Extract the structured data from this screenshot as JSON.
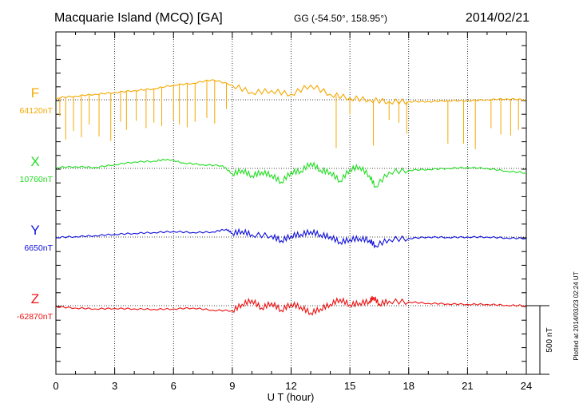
{
  "header": {
    "station": "Macquarie Island (MCQ)  [GA]",
    "coords": "GG (-54.50°, 158.95°)",
    "date": "2014/02/21"
  },
  "footer": {
    "plotted": "Plotted at 2014/03/23 02:24 UT"
  },
  "chart_data": {
    "type": "line",
    "xlabel": "U T (hour)",
    "xlim": [
      0,
      24
    ],
    "x_ticks": [
      0,
      3,
      6,
      9,
      12,
      15,
      18,
      21,
      24
    ],
    "grid": "dotted vertical lines every 3 hours; dotted baseline per trace",
    "scale_bar": {
      "label": "500 nT",
      "value_nT": 500
    },
    "series": [
      {
        "name": "F",
        "baseline_label": "64120nT",
        "baseline_nT": 64120,
        "color": "#f5a800",
        "points": [
          [
            0,
            64133
          ],
          [
            1,
            64147
          ],
          [
            2,
            64160
          ],
          [
            3,
            64173
          ],
          [
            4,
            64187
          ],
          [
            5,
            64200
          ],
          [
            6,
            64227
          ],
          [
            7,
            64240
          ],
          [
            8,
            64267
          ],
          [
            9,
            64227
          ],
          [
            10,
            64173
          ],
          [
            11,
            64187
          ],
          [
            12,
            64160
          ],
          [
            13,
            64227
          ],
          [
            14,
            64160
          ],
          [
            15,
            64133
          ],
          [
            16,
            64120
          ],
          [
            17,
            64107
          ],
          [
            18,
            64107
          ],
          [
            19,
            64107
          ],
          [
            20,
            64113
          ],
          [
            21,
            64113
          ],
          [
            22,
            64120
          ],
          [
            23,
            64127
          ],
          [
            24,
            64120
          ]
        ],
        "spikes": [
          [
            0.2,
            64000
          ],
          [
            0.5,
            63830
          ],
          [
            0.9,
            63893
          ],
          [
            1.3,
            63847
          ],
          [
            1.7,
            63940
          ],
          [
            2.2,
            63853
          ],
          [
            2.8,
            63820
          ],
          [
            3.3,
            63960
          ],
          [
            3.6,
            63900
          ],
          [
            4.1,
            63967
          ],
          [
            4.6,
            63913
          ],
          [
            5.0,
            63953
          ],
          [
            5.4,
            63927
          ],
          [
            6.0,
            63973
          ],
          [
            6.3,
            63940
          ],
          [
            6.7,
            63920
          ],
          [
            7.1,
            63960
          ],
          [
            7.7,
            63987
          ],
          [
            8.1,
            63947
          ],
          [
            8.7,
            64053
          ],
          [
            14.3,
            63767
          ],
          [
            15.0,
            64013
          ],
          [
            16.2,
            63787
          ],
          [
            17.0,
            63973
          ],
          [
            17.5,
            63953
          ],
          [
            17.9,
            63873
          ],
          [
            20.0,
            63800
          ],
          [
            20.8,
            63800
          ],
          [
            21.4,
            63760
          ],
          [
            22.2,
            63913
          ],
          [
            22.7,
            63867
          ],
          [
            23.2,
            63860
          ],
          [
            23.6,
            63900
          ]
        ]
      },
      {
        "name": "X",
        "baseline_label": "10760nT",
        "baseline_nT": 10760,
        "color": "#22dd22",
        "points": [
          [
            0,
            10767
          ],
          [
            1,
            10773
          ],
          [
            2,
            10767
          ],
          [
            3,
            10787
          ],
          [
            4,
            10807
          ],
          [
            5,
            10813
          ],
          [
            5.7,
            10827
          ],
          [
            6.5,
            10800
          ],
          [
            7.5,
            10787
          ],
          [
            8.5,
            10780
          ],
          [
            9,
            10720
          ],
          [
            9.5,
            10747
          ],
          [
            10,
            10707
          ],
          [
            10.5,
            10733
          ],
          [
            11,
            10713
          ],
          [
            11.5,
            10660
          ],
          [
            12,
            10733
          ],
          [
            12.5,
            10740
          ],
          [
            13,
            10800
          ],
          [
            13.5,
            10747
          ],
          [
            14,
            10733
          ],
          [
            14.5,
            10667
          ],
          [
            15,
            10753
          ],
          [
            15.5,
            10773
          ],
          [
            16,
            10707
          ],
          [
            16.3,
            10627
          ],
          [
            17,
            10733
          ],
          [
            18,
            10747
          ],
          [
            19,
            10753
          ],
          [
            20,
            10760
          ],
          [
            21,
            10767
          ],
          [
            22,
            10760
          ],
          [
            23,
            10740
          ],
          [
            24,
            10727
          ]
        ]
      },
      {
        "name": "Y",
        "baseline_label": "6650nT",
        "baseline_nT": 6650,
        "color": "#1010dd",
        "points": [
          [
            0,
            6647
          ],
          [
            1,
            6653
          ],
          [
            2,
            6660
          ],
          [
            3,
            6670
          ],
          [
            4,
            6677
          ],
          [
            5,
            6683
          ],
          [
            6,
            6690
          ],
          [
            7,
            6683
          ],
          [
            8,
            6687
          ],
          [
            8.7,
            6707
          ],
          [
            9,
            6677
          ],
          [
            9.5,
            6693
          ],
          [
            10,
            6667
          ],
          [
            11,
            6660
          ],
          [
            11.5,
            6623
          ],
          [
            12,
            6660
          ],
          [
            12.5,
            6670
          ],
          [
            13,
            6690
          ],
          [
            13.5,
            6667
          ],
          [
            14,
            6653
          ],
          [
            14.5,
            6613
          ],
          [
            15,
            6633
          ],
          [
            15.5,
            6640
          ],
          [
            16,
            6627
          ],
          [
            16.3,
            6587
          ],
          [
            17,
            6633
          ],
          [
            18,
            6640
          ],
          [
            19,
            6650
          ],
          [
            20,
            6647
          ],
          [
            21,
            6650
          ],
          [
            22,
            6650
          ],
          [
            23,
            6643
          ],
          [
            24,
            6640
          ]
        ]
      },
      {
        "name": "Z",
        "baseline_label": "-62870nT",
        "baseline_nT": -62870,
        "color": "#ee1111",
        "points": [
          [
            0,
            -62877
          ],
          [
            1,
            -62887
          ],
          [
            2,
            -62893
          ],
          [
            3,
            -62890
          ],
          [
            4,
            -62893
          ],
          [
            5,
            -62897
          ],
          [
            6,
            -62893
          ],
          [
            7,
            -62887
          ],
          [
            8,
            -62903
          ],
          [
            9,
            -62907
          ],
          [
            9.5,
            -62860
          ],
          [
            10,
            -62830
          ],
          [
            10.5,
            -62887
          ],
          [
            11,
            -62850
          ],
          [
            11.5,
            -62903
          ],
          [
            12,
            -62857
          ],
          [
            12.5,
            -62880
          ],
          [
            13,
            -62923
          ],
          [
            13.5,
            -62893
          ],
          [
            14,
            -62860
          ],
          [
            14.5,
            -62823
          ],
          [
            15,
            -62863
          ],
          [
            15.5,
            -62850
          ],
          [
            16,
            -62840
          ],
          [
            16.2,
            -62807
          ],
          [
            16.5,
            -62857
          ],
          [
            17,
            -62837
          ],
          [
            18,
            -62843
          ],
          [
            19,
            -62853
          ],
          [
            20,
            -62857
          ],
          [
            21,
            -62860
          ],
          [
            22,
            -62860
          ],
          [
            23,
            -62867
          ],
          [
            24,
            -62870
          ]
        ]
      }
    ]
  }
}
